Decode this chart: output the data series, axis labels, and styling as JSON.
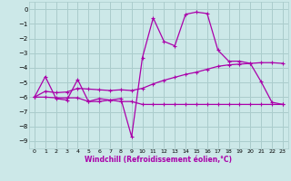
{
  "xlabel": "Windchill (Refroidissement éolien,°C)",
  "background_color": "#cce8e8",
  "grid_color": "#aacccc",
  "line_color": "#aa00aa",
  "x_values": [
    0,
    1,
    2,
    3,
    4,
    5,
    6,
    7,
    8,
    9,
    10,
    11,
    12,
    13,
    14,
    15,
    16,
    17,
    18,
    19,
    20,
    21,
    22,
    23
  ],
  "line1_y": [
    -6.0,
    -4.6,
    -6.1,
    -6.2,
    -4.8,
    -6.3,
    -6.1,
    -6.2,
    -6.1,
    -8.7,
    -3.3,
    -0.6,
    -2.2,
    -2.5,
    -0.35,
    -0.2,
    -0.3,
    -2.8,
    -3.55,
    -3.55,
    -3.7,
    -4.95,
    -6.35,
    -6.5
  ],
  "line2_y": [
    -6.0,
    -5.6,
    -5.7,
    -5.65,
    -5.4,
    -5.45,
    -5.5,
    -5.55,
    -5.5,
    -5.55,
    -5.4,
    -5.1,
    -4.85,
    -4.65,
    -4.45,
    -4.3,
    -4.1,
    -3.9,
    -3.8,
    -3.75,
    -3.7,
    -3.65,
    -3.65,
    -3.7
  ],
  "line3_y": [
    -6.0,
    -6.0,
    -6.05,
    -6.05,
    -6.05,
    -6.3,
    -6.3,
    -6.2,
    -6.3,
    -6.3,
    -6.5,
    -6.5,
    -6.5,
    -6.5,
    -6.5,
    -6.5,
    -6.5,
    -6.5,
    -6.5,
    -6.5,
    -6.5,
    -6.5,
    -6.5,
    -6.5
  ],
  "ylim": [
    -9.5,
    0.5
  ],
  "xlim": [
    -0.5,
    23.5
  ],
  "yticks": [
    0,
    -1,
    -2,
    -3,
    -4,
    -5,
    -6,
    -7,
    -8,
    -9
  ],
  "xticks": [
    0,
    1,
    2,
    3,
    4,
    5,
    6,
    7,
    8,
    9,
    10,
    11,
    12,
    13,
    14,
    15,
    16,
    17,
    18,
    19,
    20,
    21,
    22,
    23
  ]
}
